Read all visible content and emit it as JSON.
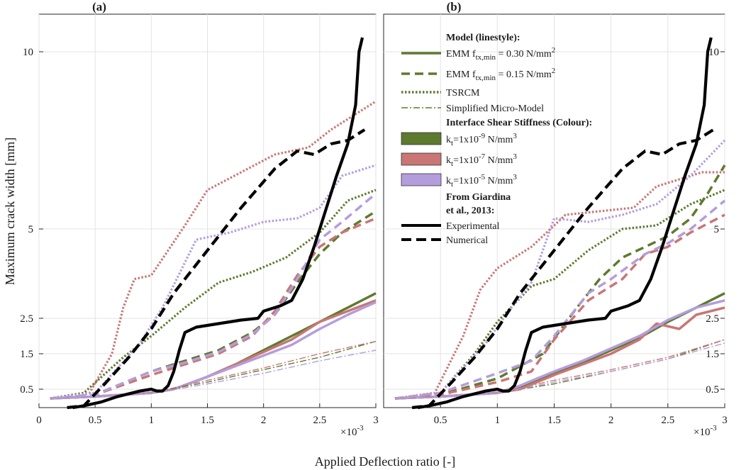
{
  "chart_data": [
    {
      "type": "line",
      "title": "(a)",
      "xlabel": "Applied Deflection ratio [-]",
      "ylabel": "Maximum crack width [mm]",
      "x_multiplier": "×10",
      "x_exponent": "-3",
      "xlim": [
        0,
        3
      ],
      "ylim": [
        0,
        11
      ],
      "xticks": [
        "0",
        "0.5",
        "1",
        "1.5",
        "2",
        "2.5",
        "3"
      ],
      "yticks_left": [
        "0.5",
        "1.5",
        "2.5",
        "5",
        "10"
      ],
      "yticks_right": [],
      "series": [
        {
          "name": "EMM 0.30 kt=1e-9",
          "style": "solid",
          "color": "#5e7a2e",
          "x": [
            0.1,
            0.5,
            1.0,
            1.2,
            1.5,
            1.75,
            2.0,
            2.25,
            2.5,
            2.75,
            3.0
          ],
          "y": [
            0.25,
            0.3,
            0.4,
            0.5,
            0.85,
            1.2,
            1.6,
            2.0,
            2.4,
            2.8,
            3.2
          ]
        },
        {
          "name": "EMM 0.30 kt=1e-7",
          "style": "solid",
          "color": "#c97675",
          "x": [
            0.1,
            0.5,
            1.0,
            1.2,
            1.5,
            1.75,
            2.0,
            2.25,
            2.5,
            2.75,
            3.0
          ],
          "y": [
            0.25,
            0.3,
            0.4,
            0.5,
            0.85,
            1.2,
            1.55,
            1.9,
            2.4,
            2.7,
            3.0
          ]
        },
        {
          "name": "EMM 0.30 kt=1e-5",
          "style": "solid",
          "color": "#b49ddb",
          "x": [
            0.1,
            0.5,
            1.0,
            1.2,
            1.5,
            1.75,
            2.0,
            2.25,
            2.5,
            2.75,
            3.0
          ],
          "y": [
            0.25,
            0.3,
            0.4,
            0.5,
            0.85,
            1.15,
            1.45,
            1.75,
            2.2,
            2.6,
            2.95
          ]
        },
        {
          "name": "EMM 0.15 kt=1e-9",
          "style": "dashed",
          "color": "#5e7a2e",
          "x": [
            0.1,
            0.5,
            1.0,
            1.3,
            1.6,
            1.9,
            2.1,
            2.3,
            2.5,
            2.7,
            3.0
          ],
          "y": [
            0.25,
            0.35,
            1.0,
            1.3,
            1.6,
            2.1,
            2.6,
            3.5,
            4.3,
            4.9,
            5.5
          ]
        },
        {
          "name": "EMM 0.15 kt=1e-7",
          "style": "dashed",
          "color": "#c97675",
          "x": [
            0.1,
            0.5,
            1.0,
            1.3,
            1.6,
            1.9,
            2.1,
            2.3,
            2.5,
            2.7,
            3.0
          ],
          "y": [
            0.25,
            0.35,
            0.9,
            1.2,
            1.5,
            2.0,
            2.7,
            3.7,
            4.5,
            4.9,
            5.3
          ]
        },
        {
          "name": "EMM 0.15 kt=1e-5",
          "style": "dashed",
          "color": "#b49ddb",
          "x": [
            0.1,
            0.5,
            1.0,
            1.3,
            1.6,
            1.9,
            2.1,
            2.3,
            2.5,
            2.7,
            3.0
          ],
          "y": [
            0.25,
            0.35,
            1.0,
            1.25,
            1.55,
            2.05,
            2.6,
            3.6,
            4.7,
            5.2,
            6.0
          ]
        },
        {
          "name": "TSRCM kt=1e-9",
          "style": "dotted",
          "color": "#5e7a2e",
          "x": [
            0.1,
            0.4,
            0.75,
            1.0,
            1.3,
            1.6,
            1.9,
            2.2,
            2.5,
            2.75,
            3.0
          ],
          "y": [
            0.25,
            0.4,
            1.4,
            2.0,
            2.8,
            3.5,
            3.8,
            4.2,
            4.9,
            5.8,
            6.1
          ]
        },
        {
          "name": "TSRCM kt=1e-7",
          "style": "dotted",
          "color": "#c97675",
          "x": [
            0.1,
            0.45,
            0.65,
            0.75,
            0.85,
            1.0,
            1.3,
            1.5,
            1.8,
            2.1,
            2.4,
            2.6,
            3.0
          ],
          "y": [
            0.25,
            0.4,
            1.5,
            2.8,
            3.6,
            3.7,
            5.1,
            6.1,
            6.6,
            7.1,
            7.3,
            7.8,
            8.6
          ]
        },
        {
          "name": "TSRCM kt=1e-5",
          "style": "dotted",
          "color": "#b49ddb",
          "x": [
            0.1,
            0.5,
            0.9,
            1.1,
            1.4,
            1.7,
            2.0,
            2.3,
            2.5,
            2.7,
            3.0
          ],
          "y": [
            0.25,
            0.4,
            1.8,
            2.8,
            4.7,
            4.9,
            5.2,
            5.3,
            5.6,
            6.5,
            6.8
          ]
        },
        {
          "name": "Simplified kt=1e-9",
          "style": "dashdot",
          "color": "#5e7a2e",
          "x": [
            0.1,
            0.5,
            1.0,
            1.5,
            2.0,
            2.5,
            3.0
          ],
          "y": [
            0.25,
            0.3,
            0.4,
            0.7,
            1.05,
            1.4,
            1.85
          ]
        },
        {
          "name": "Simplified kt=1e-7",
          "style": "dashdot",
          "color": "#c97675",
          "x": [
            0.1,
            0.5,
            1.0,
            1.5,
            2.0,
            2.5,
            3.0
          ],
          "y": [
            0.25,
            0.3,
            0.4,
            0.75,
            1.1,
            1.5,
            1.85
          ]
        },
        {
          "name": "Simplified kt=1e-5",
          "style": "dashdot",
          "color": "#b49ddb",
          "x": [
            0.1,
            0.5,
            1.0,
            1.5,
            2.0,
            2.5,
            3.0
          ],
          "y": [
            0.25,
            0.3,
            0.38,
            0.65,
            0.95,
            1.3,
            1.6
          ]
        },
        {
          "name": "Experimental",
          "style": "solid-thick",
          "color": "#000000",
          "x": [
            0.3,
            0.4,
            0.55,
            0.7,
            0.9,
            1.0,
            1.05,
            1.1,
            1.15,
            1.2,
            1.25,
            1.3,
            1.4,
            1.6,
            1.8,
            1.95,
            2.0,
            2.05,
            2.15,
            2.25,
            2.35,
            2.45,
            2.55,
            2.65,
            2.75,
            2.82,
            2.85,
            2.88
          ],
          "y": [
            0.0,
            0.05,
            0.15,
            0.3,
            0.45,
            0.5,
            0.45,
            0.45,
            0.6,
            1.0,
            1.6,
            2.1,
            2.25,
            2.35,
            2.45,
            2.5,
            2.7,
            2.75,
            2.85,
            3.0,
            3.6,
            4.5,
            5.5,
            6.5,
            7.4,
            8.5,
            10.0,
            10.4
          ]
        },
        {
          "name": "Numerical",
          "style": "dashed-thick",
          "color": "#000000",
          "x": [
            0.25,
            0.4,
            0.6,
            0.8,
            1.0,
            1.2,
            1.5,
            1.8,
            2.1,
            2.3,
            2.45,
            2.6,
            2.75,
            2.9
          ],
          "y": [
            0.0,
            0.05,
            0.7,
            1.4,
            2.2,
            3.2,
            4.4,
            5.6,
            6.7,
            7.2,
            7.1,
            7.4,
            7.5,
            7.8
          ]
        }
      ]
    },
    {
      "type": "line",
      "title": "(b)",
      "xlabel": "Applied Deflection ratio [-]",
      "x_multiplier": "×10",
      "x_exponent": "-3",
      "xlim": [
        0,
        3
      ],
      "ylim": [
        0,
        11
      ],
      "xticks": [
        "0.5",
        "1",
        "1.5",
        "2",
        "2.5",
        "3"
      ],
      "yticks_right": [
        "0.5",
        "1.5",
        "2.5",
        "5",
        "10"
      ],
      "series": [
        {
          "name": "EMM 0.30 kt=1e-9",
          "style": "solid",
          "color": "#5e7a2e",
          "x": [
            0.1,
            0.5,
            1.0,
            1.2,
            1.5,
            1.75,
            2.0,
            2.25,
            2.5,
            2.75,
            3.0
          ],
          "y": [
            0.25,
            0.3,
            0.4,
            0.55,
            0.95,
            1.25,
            1.6,
            1.95,
            2.4,
            2.8,
            3.2
          ]
        },
        {
          "name": "EMM 0.30 kt=1e-7",
          "style": "solid",
          "color": "#c97675",
          "x": [
            0.1,
            0.5,
            1.0,
            1.2,
            1.5,
            1.75,
            2.0,
            2.25,
            2.4,
            2.6,
            2.75,
            3.0
          ],
          "y": [
            0.25,
            0.3,
            0.4,
            0.5,
            0.9,
            1.2,
            1.5,
            1.9,
            2.35,
            2.2,
            2.6,
            2.8
          ]
        },
        {
          "name": "EMM 0.30 kt=1e-5",
          "style": "solid",
          "color": "#b49ddb",
          "x": [
            0.1,
            0.5,
            1.0,
            1.2,
            1.5,
            1.75,
            2.0,
            2.25,
            2.5,
            2.75,
            3.0
          ],
          "y": [
            0.25,
            0.3,
            0.4,
            0.6,
            1.0,
            1.3,
            1.65,
            2.0,
            2.45,
            2.8,
            3.0
          ]
        },
        {
          "name": "EMM 0.15 kt=1e-9",
          "style": "dashed",
          "color": "#5e7a2e",
          "x": [
            0.1,
            0.5,
            1.0,
            1.4,
            1.7,
            1.9,
            2.1,
            2.3,
            2.5,
            2.7,
            2.85,
            3.0
          ],
          "y": [
            0.25,
            0.35,
            0.8,
            1.5,
            2.8,
            3.6,
            4.2,
            4.5,
            4.8,
            5.3,
            6.0,
            6.8
          ]
        },
        {
          "name": "EMM 0.15 kt=1e-7",
          "style": "dashed",
          "color": "#c97675",
          "x": [
            0.1,
            0.5,
            1.0,
            1.3,
            1.5,
            1.8,
            2.1,
            2.3,
            2.5,
            2.7,
            3.0
          ],
          "y": [
            0.25,
            0.35,
            0.7,
            1.0,
            1.9,
            3.0,
            3.6,
            4.3,
            4.5,
            4.9,
            5.4
          ]
        },
        {
          "name": "EMM 0.15 kt=1e-5",
          "style": "dashed",
          "color": "#b49ddb",
          "x": [
            0.1,
            0.5,
            1.0,
            1.3,
            1.5,
            1.8,
            2.0,
            2.3,
            2.5,
            2.7,
            3.0
          ],
          "y": [
            0.25,
            0.4,
            0.95,
            1.3,
            2.0,
            3.2,
            3.6,
            4.3,
            4.6,
            5.0,
            5.8
          ]
        },
        {
          "name": "TSRCM kt=1e-9",
          "style": "dotted",
          "color": "#5e7a2e",
          "x": [
            0.1,
            0.5,
            0.8,
            1.0,
            1.3,
            1.5,
            1.8,
            2.1,
            2.4,
            2.7,
            3.0
          ],
          "y": [
            0.25,
            0.4,
            1.5,
            2.4,
            3.4,
            3.6,
            4.4,
            5.0,
            5.1,
            5.7,
            6.1
          ]
        },
        {
          "name": "TSRCM kt=1e-7",
          "style": "dotted",
          "color": "#c97675",
          "x": [
            0.1,
            0.45,
            0.7,
            0.85,
            1.0,
            1.3,
            1.6,
            1.9,
            2.2,
            2.4,
            2.6,
            2.8,
            3.0
          ],
          "y": [
            0.25,
            0.4,
            2.0,
            3.3,
            3.9,
            4.5,
            5.4,
            5.5,
            5.6,
            6.2,
            6.4,
            6.6,
            6.6
          ]
        },
        {
          "name": "TSRCM kt=1e-5",
          "style": "dotted",
          "color": "#b49ddb",
          "x": [
            0.1,
            0.5,
            0.9,
            1.1,
            1.3,
            1.5,
            1.8,
            2.1,
            2.4,
            2.7,
            3.0
          ],
          "y": [
            0.25,
            0.4,
            1.8,
            2.7,
            3.5,
            5.3,
            5.2,
            5.4,
            5.7,
            6.5,
            7.5
          ]
        },
        {
          "name": "Simplified kt=1e-9",
          "style": "dashdot",
          "color": "#5e7a2e",
          "x": [
            0.1,
            0.5,
            1.0,
            1.5,
            2.0,
            2.5,
            3.0
          ],
          "y": [
            0.25,
            0.3,
            0.4,
            0.65,
            1.0,
            1.35,
            1.9
          ]
        },
        {
          "name": "Simplified kt=1e-7",
          "style": "dashdot",
          "color": "#c97675",
          "x": [
            0.1,
            0.5,
            1.0,
            1.5,
            2.0,
            2.5,
            3.0
          ],
          "y": [
            0.25,
            0.3,
            0.4,
            0.75,
            1.05,
            1.4,
            1.9
          ]
        },
        {
          "name": "Simplified kt=1e-5",
          "style": "dashdot",
          "color": "#b49ddb",
          "x": [
            0.1,
            0.5,
            1.0,
            1.5,
            2.0,
            2.5,
            3.0
          ],
          "y": [
            0.25,
            0.3,
            0.38,
            0.7,
            1.0,
            1.35,
            1.8
          ]
        },
        {
          "name": "Experimental",
          "style": "solid-thick",
          "color": "#000000",
          "x": [
            0.3,
            0.4,
            0.55,
            0.7,
            0.9,
            1.0,
            1.05,
            1.1,
            1.15,
            1.2,
            1.25,
            1.3,
            1.4,
            1.6,
            1.8,
            1.95,
            2.0,
            2.05,
            2.15,
            2.25,
            2.35,
            2.45,
            2.55,
            2.65,
            2.75,
            2.82,
            2.85,
            2.88
          ],
          "y": [
            0.0,
            0.05,
            0.15,
            0.3,
            0.45,
            0.5,
            0.45,
            0.45,
            0.6,
            1.0,
            1.6,
            2.1,
            2.25,
            2.35,
            2.45,
            2.5,
            2.7,
            2.75,
            2.85,
            3.0,
            3.6,
            4.5,
            5.5,
            6.5,
            7.4,
            8.5,
            10.0,
            10.4
          ]
        },
        {
          "name": "Numerical",
          "style": "dashed-thick",
          "color": "#000000",
          "x": [
            0.25,
            0.4,
            0.6,
            0.8,
            1.0,
            1.2,
            1.5,
            1.8,
            2.1,
            2.3,
            2.45,
            2.6,
            2.75,
            2.9
          ],
          "y": [
            0.0,
            0.05,
            0.7,
            1.4,
            2.2,
            3.2,
            4.4,
            5.6,
            6.7,
            7.2,
            7.1,
            7.4,
            7.5,
            7.8
          ]
        }
      ]
    }
  ],
  "legend": {
    "model_heading": "Model (linestyle):",
    "emm_030_prefix": "EMM f",
    "emm_030_sub": "tx,min",
    "emm_030_value": " = 0.30 N/mm",
    "emm_030_sup": "2",
    "emm_015_prefix": "EMM f",
    "emm_015_sub": "tx,min",
    "emm_015_value": " = 0.15 N/mm",
    "emm_015_sup": "2",
    "tsrcm": "TSRCM",
    "simplified": "Simplified Micro-Model",
    "stiffness_heading": "Interface Shear Stiffness (Colour):",
    "kt1_k": "k",
    "kt1_sub": "t",
    "kt1_val": "=1x10",
    "kt1_exp": "-9",
    "kt1_unit": " N/mm",
    "kt1_unit_exp": "3",
    "kt2_k": "k",
    "kt2_sub": "t",
    "kt2_val": "=1x10",
    "kt2_exp": "-7",
    "kt2_unit": " N/mm",
    "kt2_unit_exp": "3",
    "kt3_k": "k",
    "kt3_sub": "t",
    "kt3_val": "=1x10",
    "kt3_exp": "-5",
    "kt3_unit": " N/mm",
    "kt3_unit_exp": "3",
    "giardina_line1": "From Giardina",
    "giardina_line2": "et al., 2013:",
    "experimental": "Experimental",
    "numerical": "Numerical"
  },
  "colors": {
    "green": "#5e7a2e",
    "red": "#c97675",
    "purple": "#b49ddb",
    "black": "#000000"
  }
}
